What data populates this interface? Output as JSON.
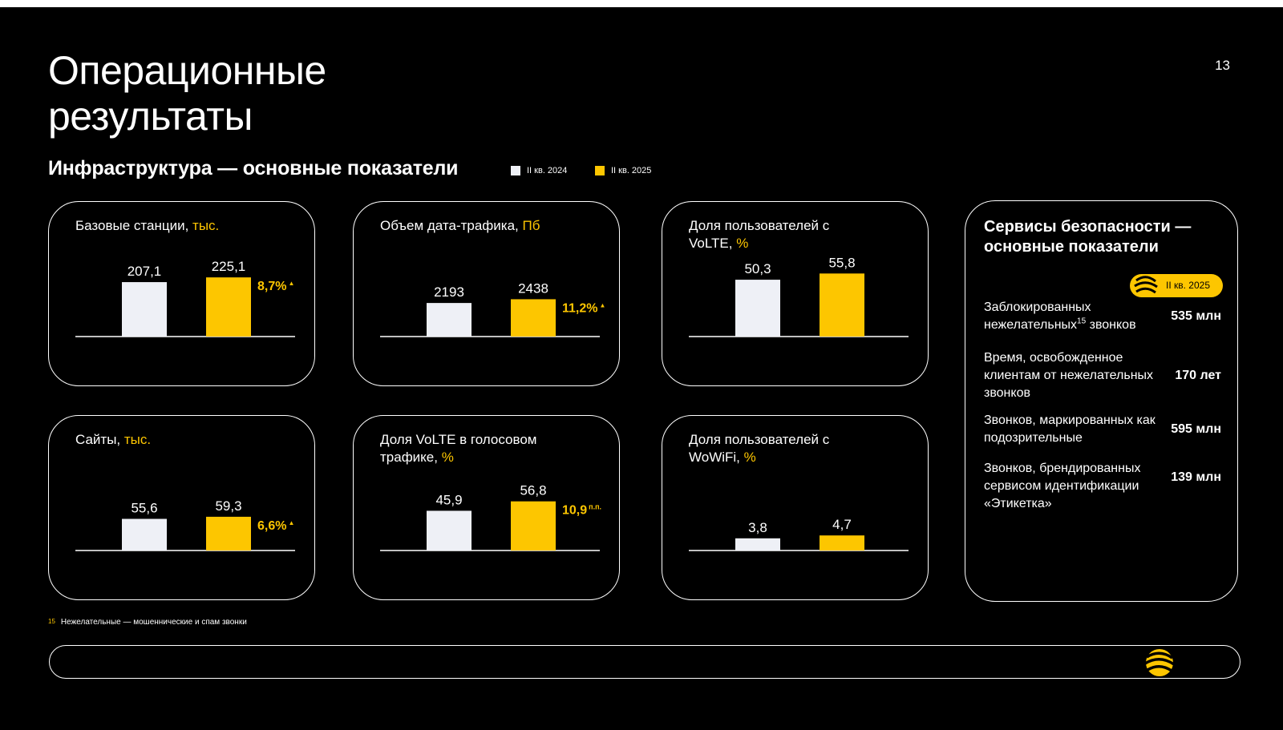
{
  "page": {
    "title": "Операционные результаты",
    "number": "13",
    "section_title": "Инфраструктура — основные показатели",
    "legend": [
      {
        "label": "II кв. 2024",
        "color": "#eef0f6"
      },
      {
        "label": "II кв. 2025",
        "color": "#fdc600"
      }
    ],
    "footnote": {
      "marker": "15",
      "text": "Нежелательные — мошеннические и спам звонки"
    }
  },
  "colors": {
    "accent": "#fdc600",
    "bar_2024": "#eef0f6",
    "background": "#000000",
    "text": "#ffffff"
  },
  "chart_data": [
    {
      "type": "bar",
      "title": "Базовые станции,",
      "unit": "тыс.",
      "categories": [
        "II кв. 2024",
        "II кв. 2025"
      ],
      "values": [
        207.1,
        225.1
      ],
      "value_labels": [
        "207,1",
        "225,1"
      ],
      "change": "8,7%",
      "change_mark": "▲"
    },
    {
      "type": "bar",
      "title": "Объем дата-трафика,",
      "unit": "Пб",
      "categories": [
        "II кв. 2024",
        "II кв. 2025"
      ],
      "values": [
        2193,
        2438
      ],
      "value_labels": [
        "2193",
        "2438"
      ],
      "change": "11,2%",
      "change_mark": "▲"
    },
    {
      "type": "bar",
      "title": "Доля пользователей с VoLTE,",
      "unit": "%",
      "categories": [
        "II кв. 2024",
        "II кв. 2025"
      ],
      "values": [
        50.3,
        55.8
      ],
      "value_labels": [
        "50,3",
        "55,8"
      ],
      "change": "",
      "change_mark": ""
    },
    {
      "type": "bar",
      "title": "Сайты,",
      "unit": "тыс.",
      "categories": [
        "II кв. 2024",
        "II кв. 2025"
      ],
      "values": [
        55.6,
        59.3
      ],
      "value_labels": [
        "55,6",
        "59,3"
      ],
      "change": "6,6%",
      "change_mark": "▲"
    },
    {
      "type": "bar",
      "title": "Доля VoLTE в голосовом трафике,",
      "unit": "%",
      "categories": [
        "II кв. 2024",
        "II кв. 2025"
      ],
      "values": [
        45.9,
        56.8
      ],
      "value_labels": [
        "45,9",
        "56,8"
      ],
      "change": "10,9",
      "change_mark": "п.п."
    },
    {
      "type": "bar",
      "title": "Доля пользователей с WoWiFi,",
      "unit": "%",
      "categories": [
        "II кв. 2024",
        "II кв. 2025"
      ],
      "values": [
        3.8,
        4.7
      ],
      "value_labels": [
        "3,8",
        "4,7"
      ],
      "change": "",
      "change_mark": ""
    }
  ],
  "security": {
    "title": "Сервисы безопасности — основные показатели",
    "badge": "II кв. 2025",
    "rows": [
      {
        "label_a": "Заблокированных нежелательных",
        "sup": "15",
        "label_b": " звонков",
        "value": "535 млн"
      },
      {
        "label_a": "Время, освобожденное клиентам от нежелательных звонков",
        "sup": "",
        "label_b": "",
        "value": "170 лет"
      },
      {
        "label_a": "Звонков, маркированных как подозрительные",
        "sup": "",
        "label_b": "",
        "value": "595 млн"
      },
      {
        "label_a": "Звонков, брендированных сервисом идентификации «Этикетка»",
        "sup": "",
        "label_b": "",
        "value": "139 млн"
      }
    ]
  }
}
